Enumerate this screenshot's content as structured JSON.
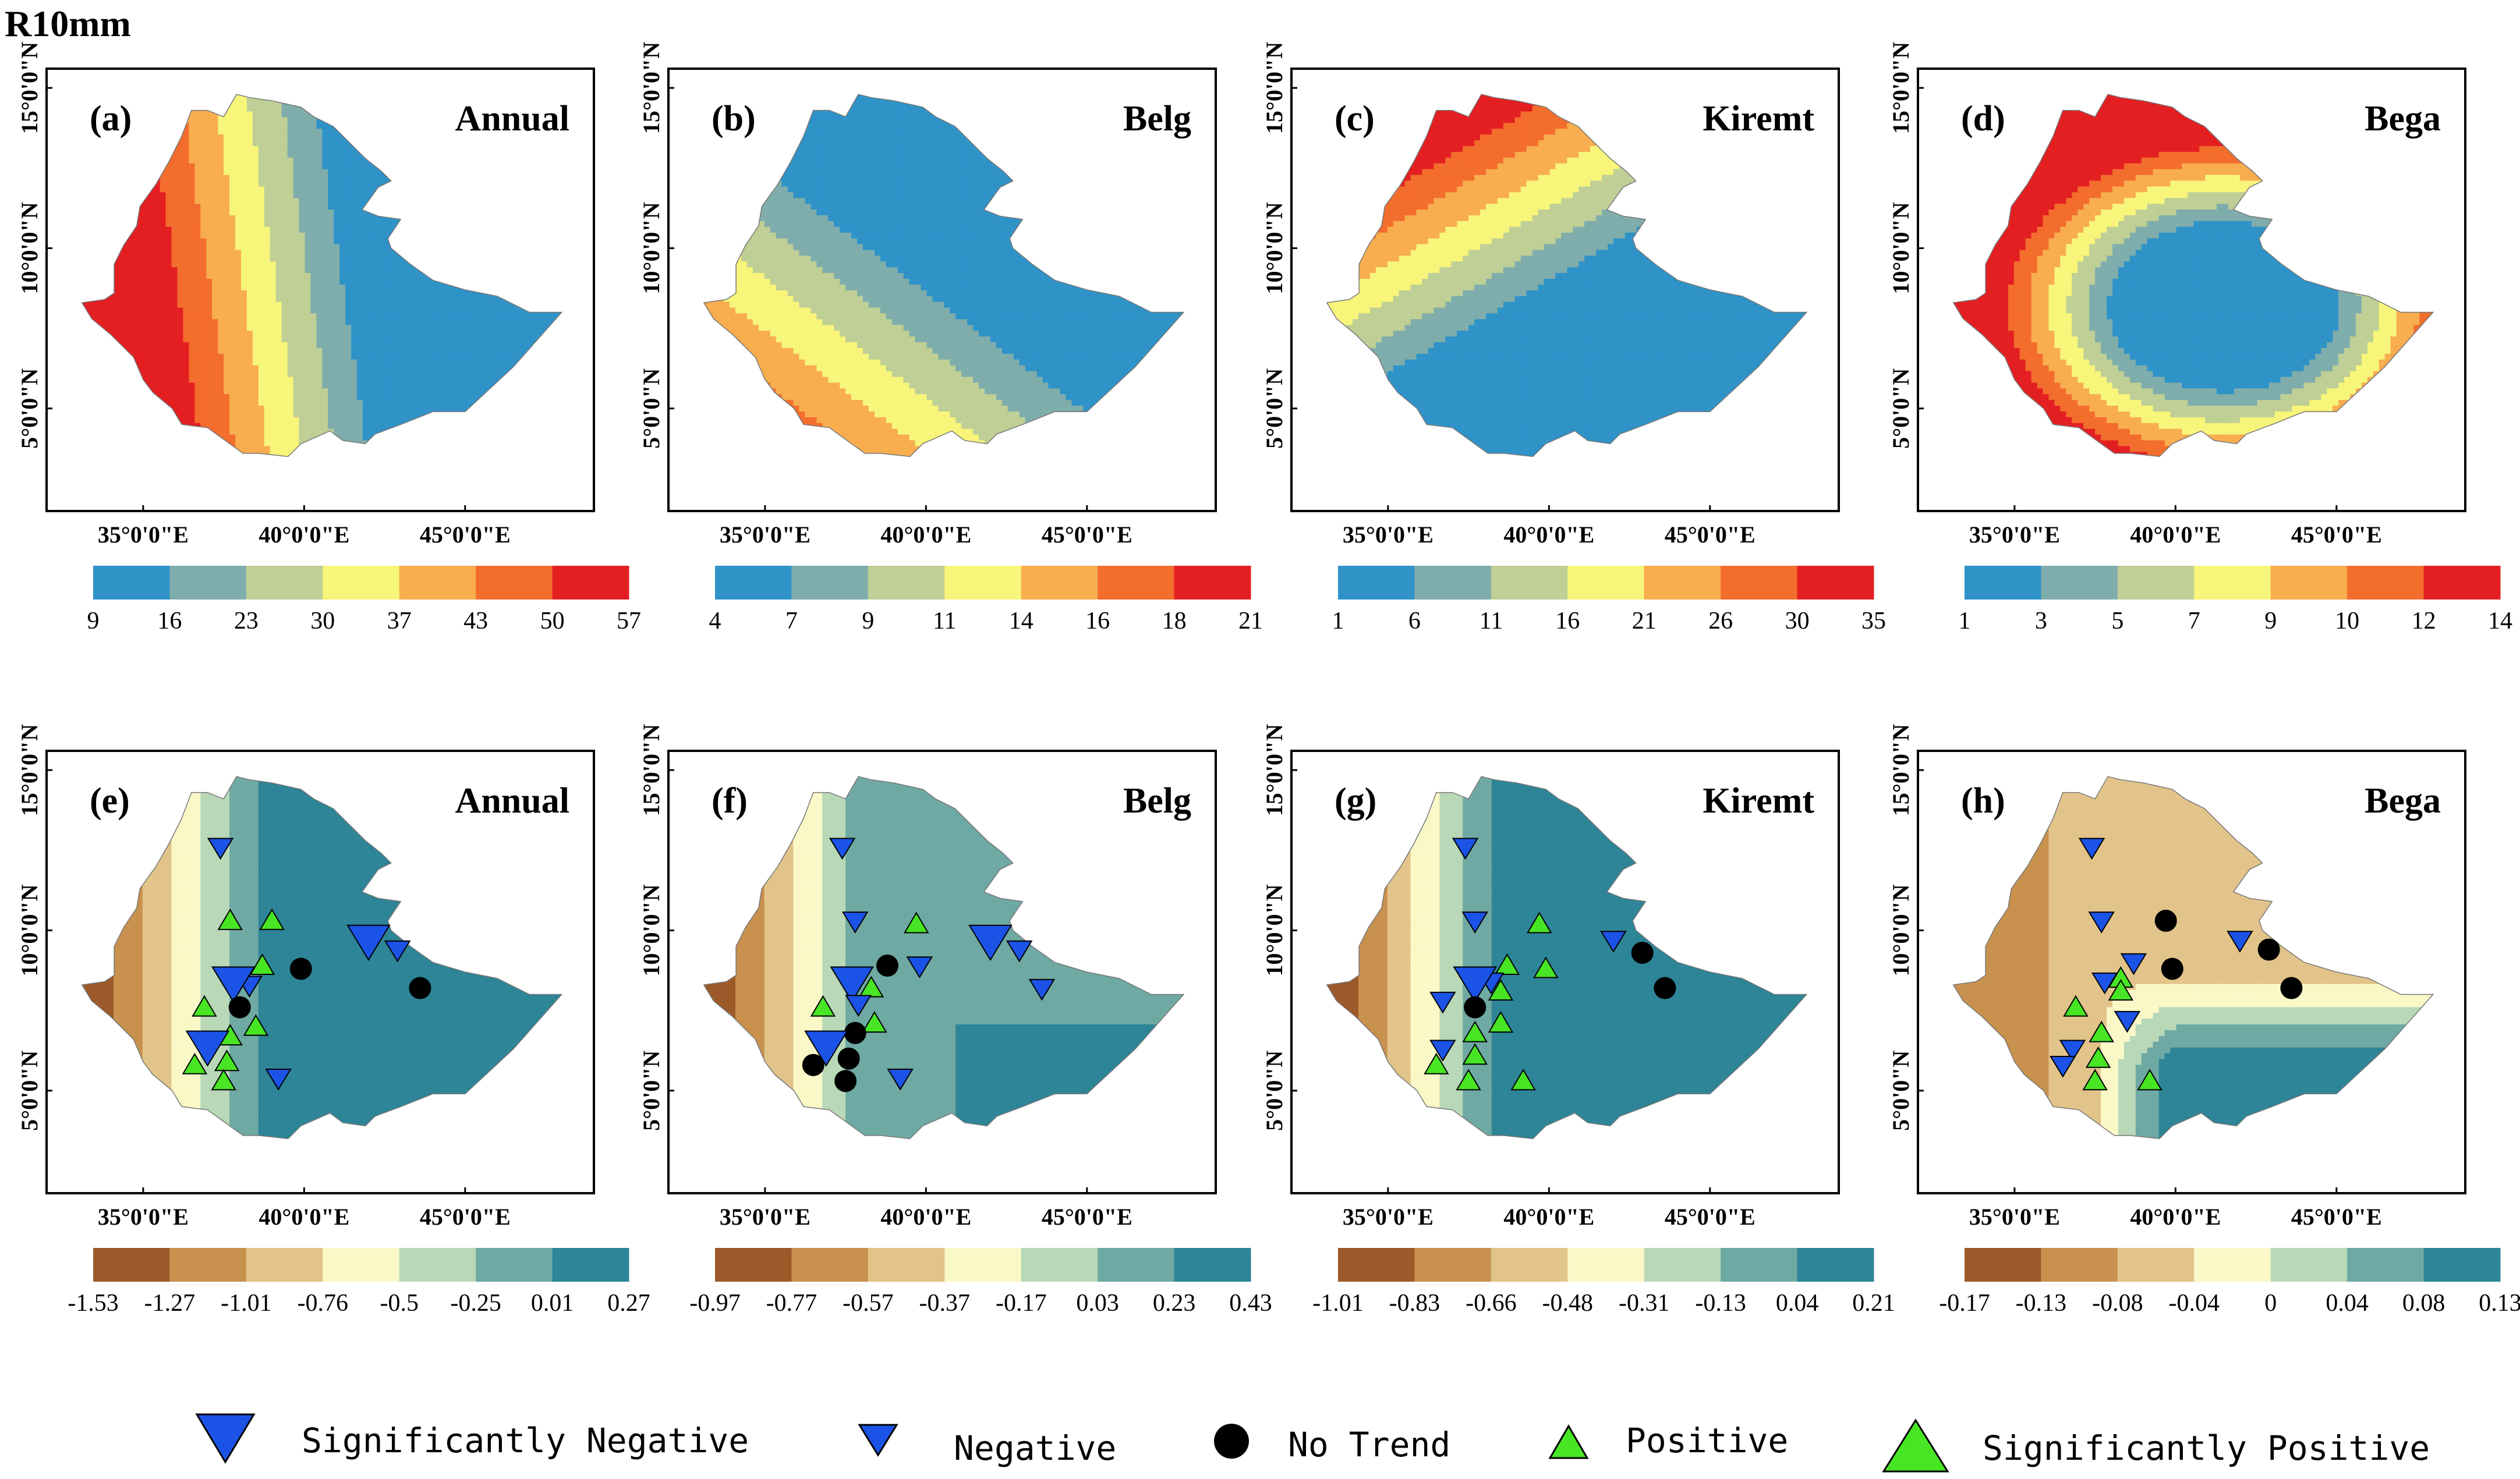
{
  "figure": {
    "title": "R10mm",
    "lon_ticks": [
      "35°0'0\"E",
      "40°0'0\"E",
      "45°0'0\"E"
    ],
    "lat_ticks": [
      "15°0'0\"N",
      "10°0'0\"N",
      "5°0'0\"N"
    ]
  },
  "palettes": {
    "climatology": [
      "#2f93c8",
      "#7fadac",
      "#bfcf95",
      "#f7f57a",
      "#f8ad4f",
      "#f36d2d",
      "#e41f22"
    ],
    "trend": [
      "#9c5a2a",
      "#c8914e",
      "#e2c48a",
      "#fbf8c8",
      "#b8d8b8",
      "#6fa9a3",
      "#2d8597"
    ]
  },
  "panels": [
    {
      "letter": "(a)",
      "season": "Annual",
      "kind": "climatology",
      "pattern": "annual",
      "ticks": [
        "9",
        "16",
        "23",
        "30",
        "37",
        "43",
        "50",
        "57"
      ]
    },
    {
      "letter": "(b)",
      "season": "Belg",
      "kind": "climatology",
      "pattern": "belg",
      "ticks": [
        "4",
        "7",
        "9",
        "11",
        "14",
        "16",
        "18",
        "21"
      ]
    },
    {
      "letter": "(c)",
      "season": "Kiremt",
      "kind": "climatology",
      "pattern": "kiremt",
      "ticks": [
        "1",
        "6",
        "11",
        "16",
        "21",
        "26",
        "30",
        "35"
      ]
    },
    {
      "letter": "(d)",
      "season": "Bega",
      "kind": "climatology",
      "pattern": "bega",
      "ticks": [
        "1",
        "3",
        "5",
        "7",
        "9",
        "10",
        "12",
        "14"
      ]
    },
    {
      "letter": "(e)",
      "season": "Annual",
      "kind": "trend",
      "pattern": "trend_west",
      "ticks": [
        "-1.53",
        "-1.27",
        "-1.01",
        "-0.76",
        "-0.5",
        "-0.25",
        "0.01",
        "0.27"
      ],
      "stations": [
        {
          "lon": 37.4,
          "lat": 12.6,
          "type": "negative"
        },
        {
          "lon": 37.7,
          "lat": 10.3,
          "type": "positive"
        },
        {
          "lon": 39.0,
          "lat": 10.3,
          "type": "positive"
        },
        {
          "lon": 42.0,
          "lat": 9.7,
          "type": "sig_negative"
        },
        {
          "lon": 42.9,
          "lat": 9.4,
          "type": "negative"
        },
        {
          "lon": 39.9,
          "lat": 8.8,
          "type": "no_trend"
        },
        {
          "lon": 43.6,
          "lat": 8.2,
          "type": "no_trend"
        },
        {
          "lon": 38.3,
          "lat": 8.3,
          "type": "negative"
        },
        {
          "lon": 38.7,
          "lat": 8.9,
          "type": "positive"
        },
        {
          "lon": 37.8,
          "lat": 8.4,
          "type": "sig_negative"
        },
        {
          "lon": 38.0,
          "lat": 7.6,
          "type": "no_trend"
        },
        {
          "lon": 36.9,
          "lat": 7.6,
          "type": "positive"
        },
        {
          "lon": 38.5,
          "lat": 7.0,
          "type": "positive"
        },
        {
          "lon": 37.7,
          "lat": 6.7,
          "type": "positive"
        },
        {
          "lon": 37.0,
          "lat": 6.4,
          "type": "sig_negative"
        },
        {
          "lon": 36.6,
          "lat": 5.8,
          "type": "positive"
        },
        {
          "lon": 37.6,
          "lat": 5.9,
          "type": "positive"
        },
        {
          "lon": 37.5,
          "lat": 5.3,
          "type": "positive"
        },
        {
          "lon": 39.2,
          "lat": 5.4,
          "type": "negative"
        }
      ]
    },
    {
      "letter": "(f)",
      "season": "Belg",
      "kind": "trend",
      "pattern": "trend_west_small",
      "ticks": [
        "-0.97",
        "-0.77",
        "-0.57",
        "-0.37",
        "-0.17",
        "0.03",
        "0.23",
        "0.43"
      ],
      "stations": [
        {
          "lon": 37.4,
          "lat": 12.6,
          "type": "negative"
        },
        {
          "lon": 37.8,
          "lat": 10.3,
          "type": "negative"
        },
        {
          "lon": 39.7,
          "lat": 10.2,
          "type": "positive"
        },
        {
          "lon": 42.0,
          "lat": 9.7,
          "type": "sig_negative"
        },
        {
          "lon": 42.9,
          "lat": 9.4,
          "type": "negative"
        },
        {
          "lon": 39.8,
          "lat": 8.9,
          "type": "negative"
        },
        {
          "lon": 38.8,
          "lat": 8.9,
          "type": "no_trend"
        },
        {
          "lon": 43.6,
          "lat": 8.2,
          "type": "negative"
        },
        {
          "lon": 37.7,
          "lat": 8.4,
          "type": "sig_negative"
        },
        {
          "lon": 38.3,
          "lat": 8.2,
          "type": "positive"
        },
        {
          "lon": 37.9,
          "lat": 7.7,
          "type": "negative"
        },
        {
          "lon": 36.8,
          "lat": 7.6,
          "type": "positive"
        },
        {
          "lon": 38.4,
          "lat": 7.1,
          "type": "positive"
        },
        {
          "lon": 37.8,
          "lat": 6.8,
          "type": "no_trend"
        },
        {
          "lon": 36.9,
          "lat": 6.4,
          "type": "sig_negative"
        },
        {
          "lon": 37.6,
          "lat": 6.0,
          "type": "no_trend"
        },
        {
          "lon": 36.5,
          "lat": 5.8,
          "type": "no_trend"
        },
        {
          "lon": 37.5,
          "lat": 5.3,
          "type": "no_trend"
        },
        {
          "lon": 39.2,
          "lat": 5.4,
          "type": "negative"
        }
      ]
    },
    {
      "letter": "(g)",
      "season": "Kiremt",
      "kind": "trend",
      "pattern": "trend_kiremt",
      "ticks": [
        "-1.01",
        "-0.83",
        "-0.66",
        "-0.48",
        "-0.31",
        "-0.13",
        "0.04",
        "0.21"
      ],
      "stations": [
        {
          "lon": 37.4,
          "lat": 12.6,
          "type": "negative"
        },
        {
          "lon": 37.7,
          "lat": 10.3,
          "type": "negative"
        },
        {
          "lon": 39.7,
          "lat": 10.2,
          "type": "positive"
        },
        {
          "lon": 42.0,
          "lat": 9.7,
          "type": "negative"
        },
        {
          "lon": 42.9,
          "lat": 9.3,
          "type": "no_trend"
        },
        {
          "lon": 43.6,
          "lat": 8.2,
          "type": "no_trend"
        },
        {
          "lon": 39.9,
          "lat": 8.8,
          "type": "positive"
        },
        {
          "lon": 38.7,
          "lat": 8.9,
          "type": "positive"
        },
        {
          "lon": 38.2,
          "lat": 8.4,
          "type": "negative"
        },
        {
          "lon": 37.7,
          "lat": 8.4,
          "type": "sig_negative"
        },
        {
          "lon": 38.5,
          "lat": 8.1,
          "type": "positive"
        },
        {
          "lon": 36.7,
          "lat": 7.8,
          "type": "negative"
        },
        {
          "lon": 37.7,
          "lat": 7.6,
          "type": "no_trend"
        },
        {
          "lon": 38.5,
          "lat": 7.1,
          "type": "positive"
        },
        {
          "lon": 37.7,
          "lat": 6.8,
          "type": "positive"
        },
        {
          "lon": 36.7,
          "lat": 6.3,
          "type": "negative"
        },
        {
          "lon": 37.7,
          "lat": 6.1,
          "type": "positive"
        },
        {
          "lon": 36.5,
          "lat": 5.8,
          "type": "positive"
        },
        {
          "lon": 37.5,
          "lat": 5.3,
          "type": "positive"
        },
        {
          "lon": 39.2,
          "lat": 5.3,
          "type": "positive"
        }
      ]
    },
    {
      "letter": "(h)",
      "season": "Bega",
      "kind": "trend",
      "pattern": "trend_bega",
      "ticks": [
        "-0.17",
        "-0.13",
        "-0.08",
        "-0.04",
        "0",
        "0.04",
        "0.08",
        "0.13"
      ],
      "stations": [
        {
          "lon": 37.4,
          "lat": 12.6,
          "type": "negative"
        },
        {
          "lon": 37.7,
          "lat": 10.3,
          "type": "negative"
        },
        {
          "lon": 39.7,
          "lat": 10.3,
          "type": "no_trend"
        },
        {
          "lon": 42.0,
          "lat": 9.7,
          "type": "negative"
        },
        {
          "lon": 42.9,
          "lat": 9.4,
          "type": "no_trend"
        },
        {
          "lon": 38.7,
          "lat": 9.0,
          "type": "negative"
        },
        {
          "lon": 39.9,
          "lat": 8.8,
          "type": "no_trend"
        },
        {
          "lon": 43.6,
          "lat": 8.2,
          "type": "no_trend"
        },
        {
          "lon": 37.8,
          "lat": 8.4,
          "type": "negative"
        },
        {
          "lon": 38.3,
          "lat": 8.5,
          "type": "positive"
        },
        {
          "lon": 38.3,
          "lat": 8.1,
          "type": "positive"
        },
        {
          "lon": 36.9,
          "lat": 7.6,
          "type": "positive"
        },
        {
          "lon": 38.5,
          "lat": 7.2,
          "type": "negative"
        },
        {
          "lon": 37.7,
          "lat": 6.8,
          "type": "positive"
        },
        {
          "lon": 36.8,
          "lat": 6.3,
          "type": "negative"
        },
        {
          "lon": 37.6,
          "lat": 6.0,
          "type": "positive"
        },
        {
          "lon": 36.5,
          "lat": 5.8,
          "type": "negative"
        },
        {
          "lon": 37.5,
          "lat": 5.3,
          "type": "positive"
        },
        {
          "lon": 39.2,
          "lat": 5.3,
          "type": "positive"
        }
      ]
    }
  ],
  "legend": {
    "sig_negative": "Significantly Negative",
    "negative": "Negative",
    "no_trend": "No Trend",
    "positive": "Positive",
    "sig_positive": "Significantly Positive"
  },
  "marker_colors": {
    "negative": "#1a53e6",
    "positive": "#48e524",
    "no_trend": "#000000"
  }
}
